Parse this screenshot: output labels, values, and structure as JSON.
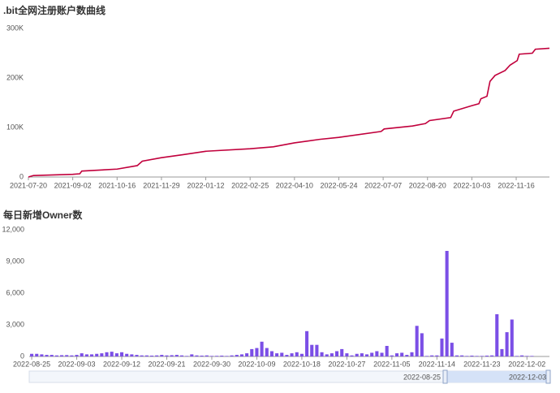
{
  "chart_data": [
    {
      "type": "line",
      "title": ".bit全网注册账户数曲线",
      "color": "#c1003c",
      "x": [
        "2021-07-20",
        "2021-07-25",
        "2021-09-02",
        "2021-09-09",
        "2021-09-11",
        "2021-10-16",
        "2021-11-05",
        "2021-11-10",
        "2021-11-29",
        "2021-12-20",
        "2022-01-12",
        "2022-02-25",
        "2022-03-20",
        "2022-04-10",
        "2022-05-05",
        "2022-05-24",
        "2022-07-05",
        "2022-07-08",
        "2022-08-05",
        "2022-08-18",
        "2022-08-22",
        "2022-09-12",
        "2022-09-15",
        "2022-10-03",
        "2022-10-10",
        "2022-10-12",
        "2022-10-18",
        "2022-10-21",
        "2022-10-26",
        "2022-11-05",
        "2022-11-10",
        "2022-11-17",
        "2022-11-19",
        "2022-12-02",
        "2022-12-05",
        "2022-12-19"
      ],
      "values": [
        0,
        3000,
        5500,
        6500,
        12000,
        16000,
        23000,
        32000,
        39000,
        45000,
        52000,
        57000,
        61000,
        69000,
        76000,
        80000,
        92000,
        97000,
        103000,
        108000,
        114000,
        120000,
        133000,
        144000,
        148000,
        158000,
        163000,
        193000,
        205000,
        215000,
        226000,
        235000,
        248000,
        250000,
        258000,
        260000
      ],
      "xlim": [
        "2021-07-20",
        "2022-12-19"
      ],
      "xticks": [
        "2021-07-20",
        "2021-09-02",
        "2021-10-16",
        "2021-11-29",
        "2022-01-12",
        "2022-02-25",
        "2022-04-10",
        "2022-05-24",
        "2022-07-07",
        "2022-08-20",
        "2022-10-03",
        "2022-11-16"
      ],
      "ylim": [
        0,
        300000
      ],
      "yticks": [
        0,
        {
          "value": 100000,
          "label": "100K"
        },
        {
          "value": 200000,
          "label": "200K"
        },
        {
          "value": 300000,
          "label": "300K"
        }
      ],
      "grid": false
    },
    {
      "type": "bar",
      "title": "每日新增Owner数",
      "color": "#7b4fe6",
      "categories": [
        "2022-08-25",
        null,
        null,
        null,
        null,
        null,
        null,
        null,
        null,
        "2022-09-03",
        null,
        null,
        null,
        null,
        null,
        null,
        null,
        null,
        "2022-09-12",
        null,
        null,
        null,
        null,
        null,
        null,
        null,
        null,
        "2022-09-21",
        null,
        null,
        null,
        null,
        null,
        null,
        null,
        null,
        "2022-09-30",
        null,
        null,
        null,
        null,
        null,
        null,
        null,
        null,
        "2022-10-09",
        null,
        null,
        null,
        null,
        null,
        null,
        null,
        null,
        "2022-10-18",
        null,
        null,
        null,
        null,
        null,
        null,
        null,
        null,
        "2022-10-27",
        null,
        null,
        null,
        null,
        null,
        null,
        null,
        null,
        "2022-11-05",
        null,
        null,
        null,
        null,
        null,
        null,
        null,
        null,
        "2022-11-14",
        null,
        null,
        null,
        null,
        null,
        null,
        null,
        null,
        "2022-11-23",
        null,
        null,
        null,
        null,
        null,
        null,
        null,
        null,
        "2022-12-02",
        null,
        null,
        null,
        null
      ],
      "values": [
        250,
        250,
        200,
        150,
        150,
        100,
        120,
        130,
        100,
        150,
        300,
        200,
        200,
        250,
        300,
        400,
        450,
        300,
        400,
        250,
        200,
        150,
        100,
        100,
        80,
        100,
        150,
        100,
        120,
        150,
        100,
        50,
        200,
        100,
        80,
        100,
        50,
        60,
        80,
        50,
        100,
        150,
        200,
        300,
        700,
        800,
        1400,
        800,
        500,
        300,
        350,
        150,
        300,
        400,
        250,
        2400,
        1100,
        1100,
        400,
        200,
        300,
        500,
        700,
        300,
        100,
        250,
        300,
        200,
        350,
        500,
        350,
        1000,
        100,
        300,
        350,
        150,
        400,
        2900,
        2200,
        50,
        100,
        100,
        1700,
        10000,
        1300,
        100,
        100,
        50,
        80,
        50,
        50,
        80,
        100,
        4000,
        700,
        2300,
        3500,
        50,
        100,
        50,
        50,
        0,
        0,
        0
      ],
      "ylim": [
        0,
        12000
      ],
      "yticks": [
        0,
        {
          "value": 3000,
          "label": "3,000"
        },
        {
          "value": 6000,
          "label": "6,000"
        },
        {
          "value": 9000,
          "label": "9,000"
        },
        {
          "value": 12000,
          "label": "12,000"
        }
      ],
      "grid": false,
      "slider": {
        "start": "2022-08-25",
        "end": "2022-12-03"
      }
    }
  ]
}
